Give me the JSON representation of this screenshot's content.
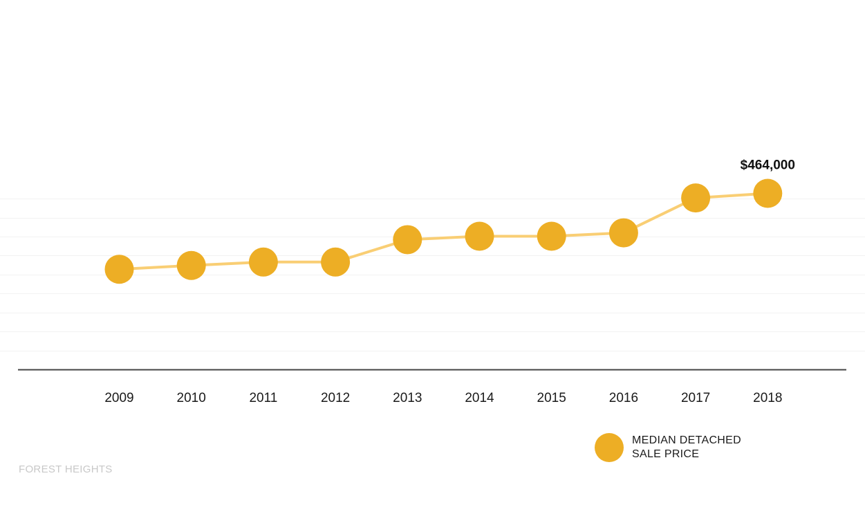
{
  "chart_data": {
    "type": "line",
    "categories": [
      "2009",
      "2010",
      "2011",
      "2012",
      "2013",
      "2014",
      "2015",
      "2016",
      "2017",
      "2018"
    ],
    "series": [
      {
        "name": "MEDIAN DETACHED SALE PRICE",
        "values": [
          264000,
          274000,
          283000,
          283000,
          342000,
          351000,
          351000,
          360000,
          452000,
          464000
        ]
      }
    ],
    "ylim": [
      0,
      950000
    ],
    "grid": true,
    "annotations": [
      {
        "category": "2018",
        "text": "$464,000"
      }
    ],
    "legend": {
      "position": "bottom-right",
      "lines": [
        "MEDIAN DETACHED",
        "SALE PRICE"
      ]
    },
    "colors": {
      "marker": "#EDAE25",
      "line": "#F9CE74",
      "axis": "#444444",
      "grid": "#f2f2f2"
    }
  },
  "footer": {
    "label": "FOREST HEIGHTS"
  }
}
